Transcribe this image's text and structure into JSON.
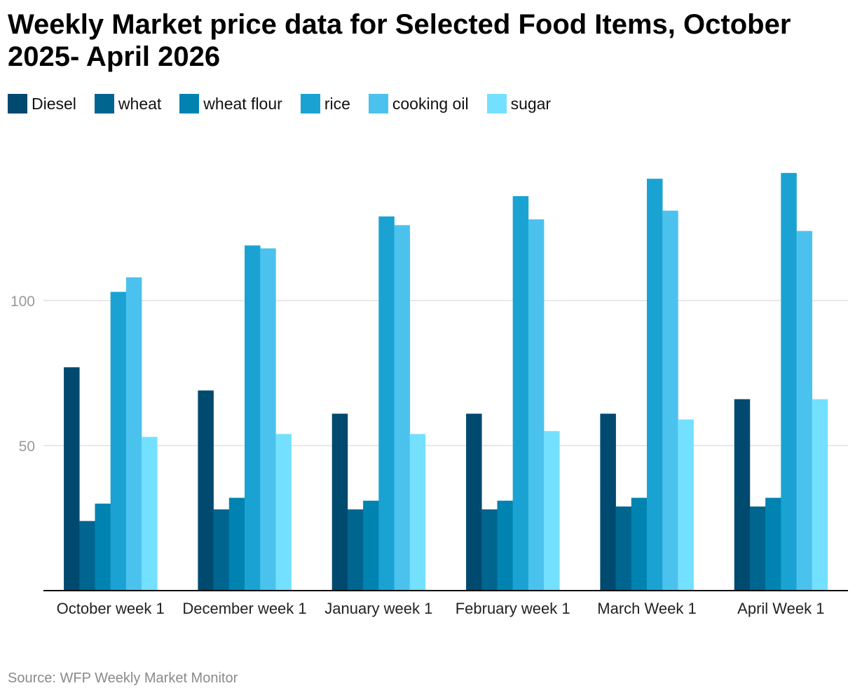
{
  "source_text": "Source: WFP Weekly Market Monitor",
  "chart_data": {
    "type": "bar",
    "title": "Weekly Market price data for Selected Food Items, October 2025- April 2026",
    "xlabel": "",
    "ylabel": "",
    "categories": [
      "October week 1",
      "December week 1",
      "January week 1",
      "February week 1",
      "March Week 1",
      "April Week 1"
    ],
    "series": [
      {
        "name": "Diesel",
        "color": "#00496f",
        "values": [
          77,
          69,
          61,
          61,
          61,
          66
        ]
      },
      {
        "name": "wheat",
        "color": "#00658f",
        "values": [
          24,
          28,
          28,
          28,
          29,
          29
        ]
      },
      {
        "name": "wheat flour",
        "color": "#0083b0",
        "values": [
          30,
          32,
          31,
          31,
          32,
          32
        ]
      },
      {
        "name": "rice",
        "color": "#1aa3d2",
        "values": [
          103,
          119,
          129,
          136,
          142,
          144
        ]
      },
      {
        "name": "cooking oil",
        "color": "#4bc2ee",
        "values": [
          108,
          118,
          126,
          128,
          131,
          124
        ]
      },
      {
        "name": "sugar",
        "color": "#74e0ff",
        "values": [
          53,
          54,
          54,
          55,
          59,
          66
        ]
      }
    ],
    "ylim": [
      0,
      150
    ],
    "yticks": [
      50,
      100
    ],
    "grid": true,
    "legend_position": "top-left"
  }
}
